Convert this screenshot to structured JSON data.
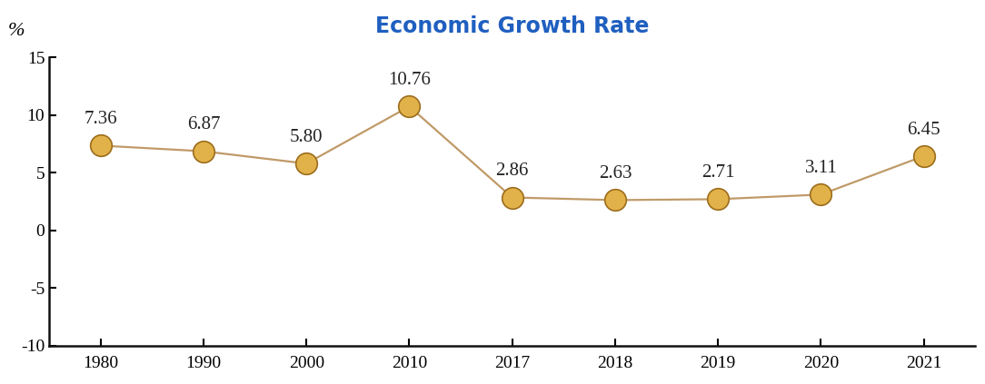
{
  "chart_data": {
    "type": "line",
    "title": "Economic Growth Rate",
    "y_label": "%",
    "categories": [
      "1980",
      "1990",
      "2000",
      "2010",
      "2017",
      "2018",
      "2019",
      "2020",
      "2021"
    ],
    "values": [
      7.36,
      6.87,
      5.8,
      10.76,
      2.86,
      2.63,
      2.71,
      3.11,
      6.45
    ],
    "value_labels": [
      "7.36",
      "6.87",
      "5.80",
      "10.76",
      "2.86",
      "2.63",
      "2.71",
      "3.11",
      "6.45"
    ],
    "ylim": [
      -10,
      15
    ],
    "yticks": [
      -10,
      -5,
      0,
      5,
      10,
      15
    ],
    "color": "#c09a68",
    "marker": "o",
    "data_labels": true,
    "grid": false
  }
}
